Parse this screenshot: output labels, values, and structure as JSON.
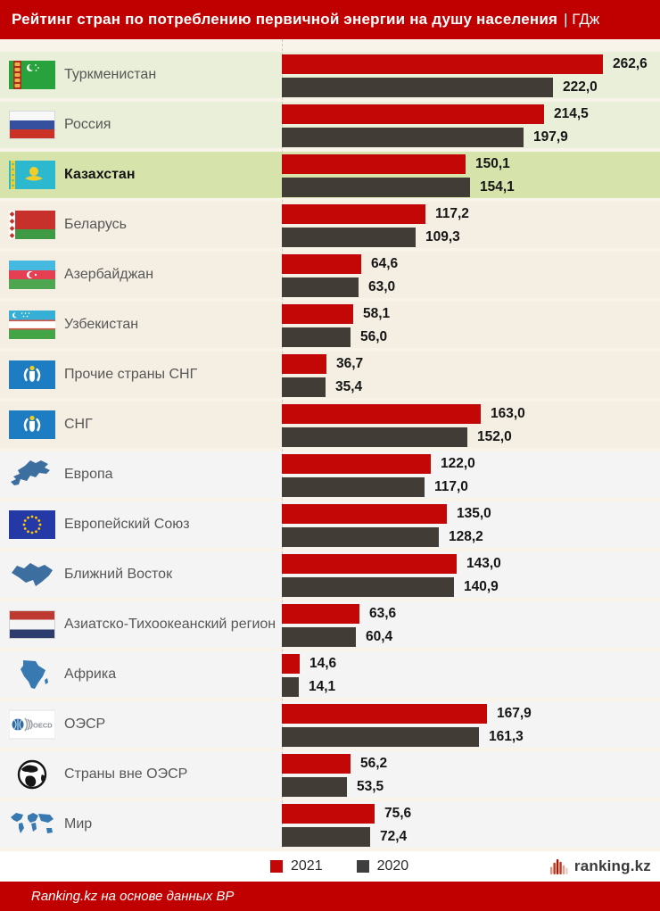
{
  "header": {
    "title": "Рейтинг стран по потреблению первичной энергии на душу населения",
    "unit": "| ГДж"
  },
  "colors": {
    "header_bg": "#C00000",
    "footer_bg": "#C00000",
    "bar_2021": "#C30606",
    "bar_2020": "#413C36",
    "row_green": "#E9EFD8",
    "row_green_highlight": "#D6E3AB",
    "row_cream": "#F5EFE3",
    "row_gray": "#F4F4F4"
  },
  "rows": [
    {
      "label": "Туркменистан",
      "icon": "flag-turkmenistan",
      "v2021": "262,6",
      "v2020": "222,0",
      "zone": "green",
      "bold": false
    },
    {
      "label": "Россия",
      "icon": "flag-russia",
      "v2021": "214,5",
      "v2020": "197,9",
      "zone": "green",
      "bold": false
    },
    {
      "label": "Казахстан",
      "icon": "flag-kazakhstan",
      "v2021": "150,1",
      "v2020": "154,1",
      "zone": "green-hl",
      "bold": true
    },
    {
      "label": "Беларусь",
      "icon": "flag-belarus",
      "v2021": "117,2",
      "v2020": "109,3",
      "zone": "cream",
      "bold": false
    },
    {
      "label": "Азербайджан",
      "icon": "flag-azerbaijan",
      "v2021": "64,6",
      "v2020": "63,0",
      "zone": "cream",
      "bold": false
    },
    {
      "label": "Узбекистан",
      "icon": "flag-uzbekistan",
      "v2021": "58,1",
      "v2020": "56,0",
      "zone": "cream",
      "bold": false
    },
    {
      "label": "Прочие страны СНГ",
      "icon": "flag-cis",
      "v2021": "36,7",
      "v2020": "35,4",
      "zone": "cream",
      "bold": false
    },
    {
      "label": "СНГ",
      "icon": "flag-cis",
      "v2021": "163,0",
      "v2020": "152,0",
      "zone": "cream",
      "bold": false
    },
    {
      "label": "Европа",
      "icon": "map-europe",
      "v2021": "122,0",
      "v2020": "117,0",
      "zone": "gray",
      "bold": false
    },
    {
      "label": "Европейский Союз",
      "icon": "flag-eu",
      "v2021": "135,0",
      "v2020": "128,2",
      "zone": "gray",
      "bold": false
    },
    {
      "label": "Ближний Восток",
      "icon": "map-middle-east",
      "v2021": "143,0",
      "v2020": "140,9",
      "zone": "gray",
      "bold": false
    },
    {
      "label": "Азиатско-Тихоокеанский регион",
      "icon": "flag-apac",
      "v2021": "63,6",
      "v2020": "60,4",
      "zone": "gray",
      "bold": false
    },
    {
      "label": "Африка",
      "icon": "map-africa",
      "v2021": "14,6",
      "v2020": "14,1",
      "zone": "gray",
      "bold": false
    },
    {
      "label": "ОЭСР",
      "icon": "oecd-logo",
      "v2021": "167,9",
      "v2020": "161,3",
      "zone": "gray",
      "bold": false
    },
    {
      "label": "Страны вне ОЭСР",
      "icon": "globe-bw",
      "v2021": "56,2",
      "v2020": "53,5",
      "zone": "gray",
      "bold": false
    },
    {
      "label": "Мир",
      "icon": "map-world",
      "v2021": "75,6",
      "v2020": "72,4",
      "zone": "gray",
      "bold": false
    }
  ],
  "legend": {
    "items": [
      {
        "label": "2021",
        "color": "#C30606"
      },
      {
        "label": "2020",
        "color": "#3E3E3E"
      }
    ]
  },
  "logo": {
    "text": "ranking.kz"
  },
  "footer": {
    "source": "Ranking.kz на основе данных BP"
  },
  "chart_data": {
    "type": "bar",
    "orientation": "horizontal",
    "title": "Рейтинг стран по потреблению первичной энергии на душу населения",
    "unit": "ГДж",
    "categories": [
      "Туркменистан",
      "Россия",
      "Казахстан",
      "Беларусь",
      "Азербайджан",
      "Узбекистан",
      "Прочие страны СНГ",
      "СНГ",
      "Европа",
      "Европейский Союз",
      "Ближний Восток",
      "Азиатско-Тихоокеанский регион",
      "Африка",
      "ОЭСР",
      "Страны вне ОЭСР",
      "Мир"
    ],
    "series": [
      {
        "name": "2021",
        "color": "#C30606",
        "values": [
          262.6,
          214.5,
          150.1,
          117.2,
          64.6,
          58.1,
          36.7,
          163.0,
          122.0,
          135.0,
          143.0,
          63.6,
          14.6,
          167.9,
          56.2,
          75.6
        ]
      },
      {
        "name": "2020",
        "color": "#413C36",
        "values": [
          222.0,
          197.9,
          154.1,
          109.3,
          63.0,
          56.0,
          35.4,
          152.0,
          117.0,
          128.2,
          140.9,
          60.4,
          14.1,
          161.3,
          53.5,
          72.4
        ]
      }
    ],
    "value_labels": true,
    "legend_position": "bottom",
    "highlighted_category": "Казахстан",
    "xlim": [
      0,
      290
    ]
  }
}
